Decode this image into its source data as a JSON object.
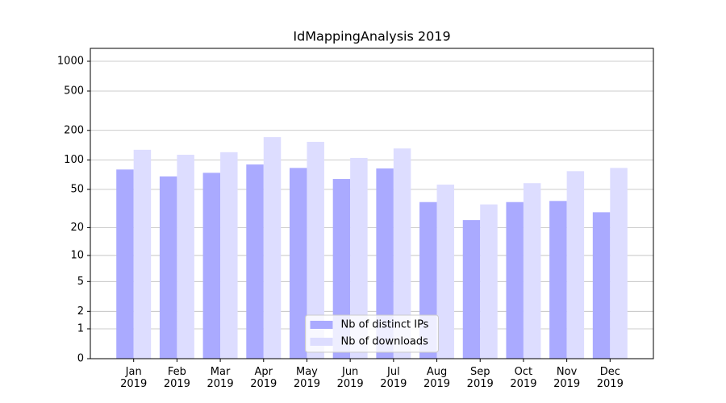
{
  "chart_data": {
    "type": "bar",
    "title": "IdMappingAnalysis 2019",
    "categories": [
      "Jan\n2019",
      "Feb\n2019",
      "Mar\n2019",
      "Apr\n2019",
      "May\n2019",
      "Jun\n2019",
      "Jul\n2019",
      "Aug\n2019",
      "Sep\n2019",
      "Oct\n2019",
      "Nov\n2019",
      "Dec\n2019"
    ],
    "series": [
      {
        "name": "Nb of distinct IPs",
        "color": "#aaaaff",
        "values": [
          80,
          68,
          74,
          90,
          83,
          64,
          82,
          37,
          24,
          37,
          38,
          29
        ]
      },
      {
        "name": "Nb of downloads",
        "color": "#ddddff",
        "values": [
          127,
          113,
          120,
          171,
          153,
          105,
          131,
          56,
          35,
          58,
          77,
          83
        ]
      }
    ],
    "yscale": "log1p",
    "ylim": [
      0,
      1350
    ],
    "yticks": [
      0,
      1,
      2,
      5,
      10,
      20,
      50,
      100,
      200,
      500,
      1000
    ],
    "grid": true,
    "legend": "lower center"
  }
}
